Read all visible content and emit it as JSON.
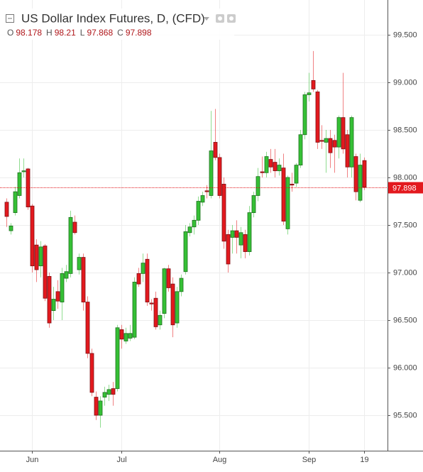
{
  "chart_data": {
    "type": "candlestick",
    "title": "US Dollar Index Futures, D, (CFD)",
    "legend": [
      {
        "label": "O",
        "value": 98.178
      },
      {
        "label": "H",
        "value": 98.21
      },
      {
        "label": "L",
        "value": 97.868
      },
      {
        "label": "C",
        "value": 97.898
      }
    ],
    "open": [
      97.74,
      97.44,
      97.63,
      97.81,
      98.06,
      98.09,
      97.7,
      97.29,
      97.07,
      97.28,
      96.96,
      96.6,
      96.8,
      96.69,
      96.94,
      96.99,
      97.53,
      97.03,
      97.16,
      96.69,
      96.15,
      95.69,
      95.5,
      95.69,
      95.72,
      95.78,
      95.78,
      96.4,
      96.28,
      96.31,
      96.32,
      96.99,
      96.99,
      97.14,
      96.68,
      96.73,
      96.45,
      96.57,
      97.04,
      96.88,
      96.47,
      96.8,
      97.01,
      97.42,
      97.48,
      97.55,
      97.74,
      97.86,
      97.81,
      98.37,
      98.21,
      97.93,
      97.4,
      97.37,
      97.44,
      97.29,
      97.4,
      97.22,
      97.63,
      97.81,
      98.06,
      98.05,
      98.19,
      98.16,
      98.07,
      98.1,
      97.46,
      97.93,
      97.94,
      98.13,
      98.45,
      98.87,
      99.02,
      98.9,
      98.39,
      98.37,
      98.41,
      98.39,
      98.32,
      98.63,
      98.45,
      98.11,
      98.22,
      97.76,
      98.178
    ],
    "high": [
      97.78,
      97.52,
      97.9,
      98.2,
      98.2,
      98.1,
      97.72,
      97.35,
      97.33,
      97.3,
      97.0,
      96.85,
      96.92,
      97.05,
      97.08,
      97.65,
      97.6,
      97.2,
      97.2,
      96.75,
      96.2,
      95.75,
      95.7,
      95.8,
      95.82,
      95.85,
      96.45,
      96.45,
      96.42,
      96.45,
      96.95,
      97.05,
      97.2,
      97.2,
      96.72,
      96.8,
      96.6,
      97.05,
      97.08,
      96.95,
      96.85,
      96.98,
      97.5,
      97.52,
      97.6,
      97.8,
      97.85,
      97.92,
      98.7,
      98.72,
      98.25,
      98.0,
      97.45,
      97.5,
      97.55,
      97.48,
      97.45,
      97.7,
      97.85,
      98.1,
      98.22,
      98.27,
      98.3,
      98.3,
      98.2,
      98.25,
      98.02,
      98.05,
      98.15,
      98.5,
      98.9,
      99.1,
      99.33,
      98.92,
      98.55,
      98.5,
      98.5,
      98.45,
      98.65,
      99.1,
      98.5,
      98.65,
      98.25,
      98.25,
      98.21
    ],
    "low": [
      97.48,
      97.4,
      97.6,
      97.78,
      98.0,
      97.66,
      97.0,
      96.9,
      96.95,
      96.7,
      96.42,
      96.5,
      96.62,
      96.5,
      96.9,
      96.95,
      97.4,
      96.98,
      96.6,
      96.1,
      95.7,
      95.45,
      95.37,
      95.6,
      95.65,
      95.6,
      95.75,
      96.2,
      96.25,
      96.28,
      96.3,
      96.85,
      96.9,
      96.65,
      96.6,
      96.4,
      96.4,
      96.52,
      96.8,
      96.32,
      96.42,
      96.75,
      96.98,
      97.38,
      97.4,
      97.5,
      97.7,
      97.78,
      97.78,
      98.18,
      97.78,
      97.25,
      97.0,
      97.2,
      97.2,
      97.15,
      97.15,
      97.18,
      97.58,
      97.75,
      98.0,
      98.0,
      98.05,
      98.0,
      98.02,
      97.5,
      97.4,
      97.85,
      97.9,
      98.1,
      98.4,
      98.8,
      98.9,
      98.3,
      98.3,
      98.05,
      98.1,
      98.05,
      98.2,
      98.25,
      98.0,
      98.0,
      97.76,
      97.74,
      97.868
    ],
    "close": [
      97.59,
      97.49,
      97.85,
      98.05,
      98.07,
      97.69,
      97.07,
      97.03,
      97.27,
      96.73,
      96.47,
      96.72,
      96.7,
      96.99,
      97.01,
      97.58,
      97.42,
      97.16,
      96.69,
      96.15,
      95.74,
      95.5,
      95.65,
      95.74,
      95.77,
      95.72,
      96.42,
      96.3,
      96.36,
      96.36,
      96.9,
      96.88,
      97.1,
      96.69,
      96.67,
      96.43,
      96.55,
      97.04,
      96.84,
      96.45,
      96.8,
      96.94,
      97.43,
      97.48,
      97.55,
      97.75,
      97.81,
      97.85,
      98.28,
      98.21,
      97.81,
      97.33,
      97.09,
      97.44,
      97.37,
      97.42,
      97.22,
      97.63,
      97.81,
      98.01,
      98.05,
      98.22,
      98.11,
      98.07,
      98.13,
      97.54,
      98.0,
      97.92,
      98.13,
      98.45,
      98.87,
      98.89,
      98.93,
      98.37,
      98.38,
      98.41,
      98.26,
      98.32,
      98.63,
      98.3,
      98.11,
      98.63,
      97.85,
      98.13,
      97.898
    ],
    "up_color": "#35c035",
    "down_color": "#e3191e",
    "ylim": [
      95.127,
      99.866
    ],
    "yticks": [
      {
        "value": 95.5,
        "label": "95.500"
      },
      {
        "value": 96.0,
        "label": "96.000"
      },
      {
        "value": 96.5,
        "label": "96.500"
      },
      {
        "value": 97.0,
        "label": "97.000"
      },
      {
        "value": 97.5,
        "label": "97.500"
      },
      {
        "value": 98.0,
        "label": "98.000"
      },
      {
        "value": 98.5,
        "label": "98.500"
      },
      {
        "value": 99.0,
        "label": "99.000"
      },
      {
        "value": 99.5,
        "label": "99.500"
      }
    ],
    "xticks": [
      {
        "value": 6,
        "label": "Jun"
      },
      {
        "value": 27,
        "label": "Jul"
      },
      {
        "value": 50,
        "label": "Aug"
      },
      {
        "value": 71,
        "label": "Sep"
      },
      {
        "value": 84,
        "label": "19"
      }
    ],
    "grid": true
  }
}
